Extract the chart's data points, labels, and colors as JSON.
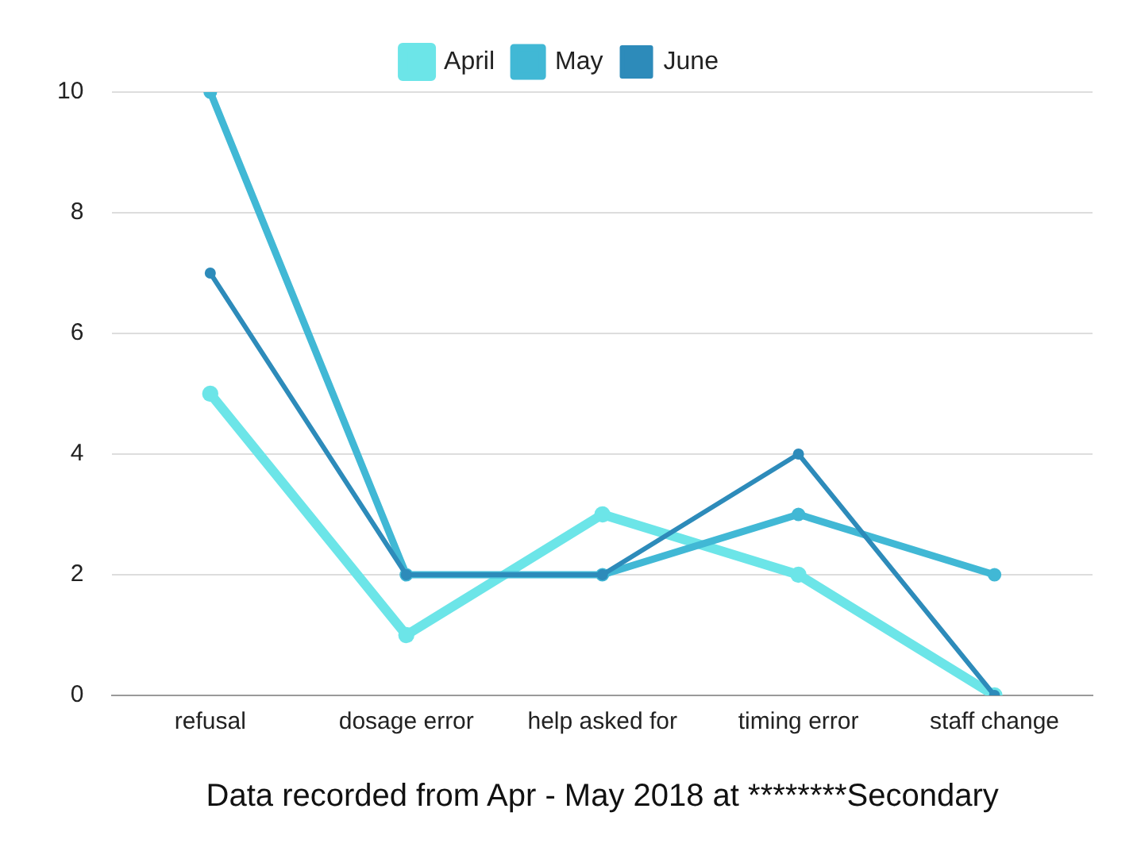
{
  "chart_data": {
    "type": "line",
    "xlabel": "Data recorded from Apr - May 2018 at ********Secondary",
    "categories": [
      "refusal",
      "dosage error",
      "help asked for",
      "timing error",
      "staff change"
    ],
    "series": [
      {
        "name": "April",
        "color": "#6ce5e8",
        "values": [
          5,
          1,
          3,
          2,
          0
        ]
      },
      {
        "name": "May",
        "color": "#41b8d5",
        "values": [
          10,
          2,
          2,
          3,
          2
        ]
      },
      {
        "name": "June",
        "color": "#2d8bba",
        "values": [
          7,
          2,
          2,
          4,
          0
        ]
      }
    ],
    "ylim": [
      0,
      10
    ],
    "yticks": [
      0,
      2,
      4,
      6,
      8,
      10
    ],
    "grid": "y",
    "legend": "top",
    "marker": "circle",
    "line_style": "solid"
  }
}
